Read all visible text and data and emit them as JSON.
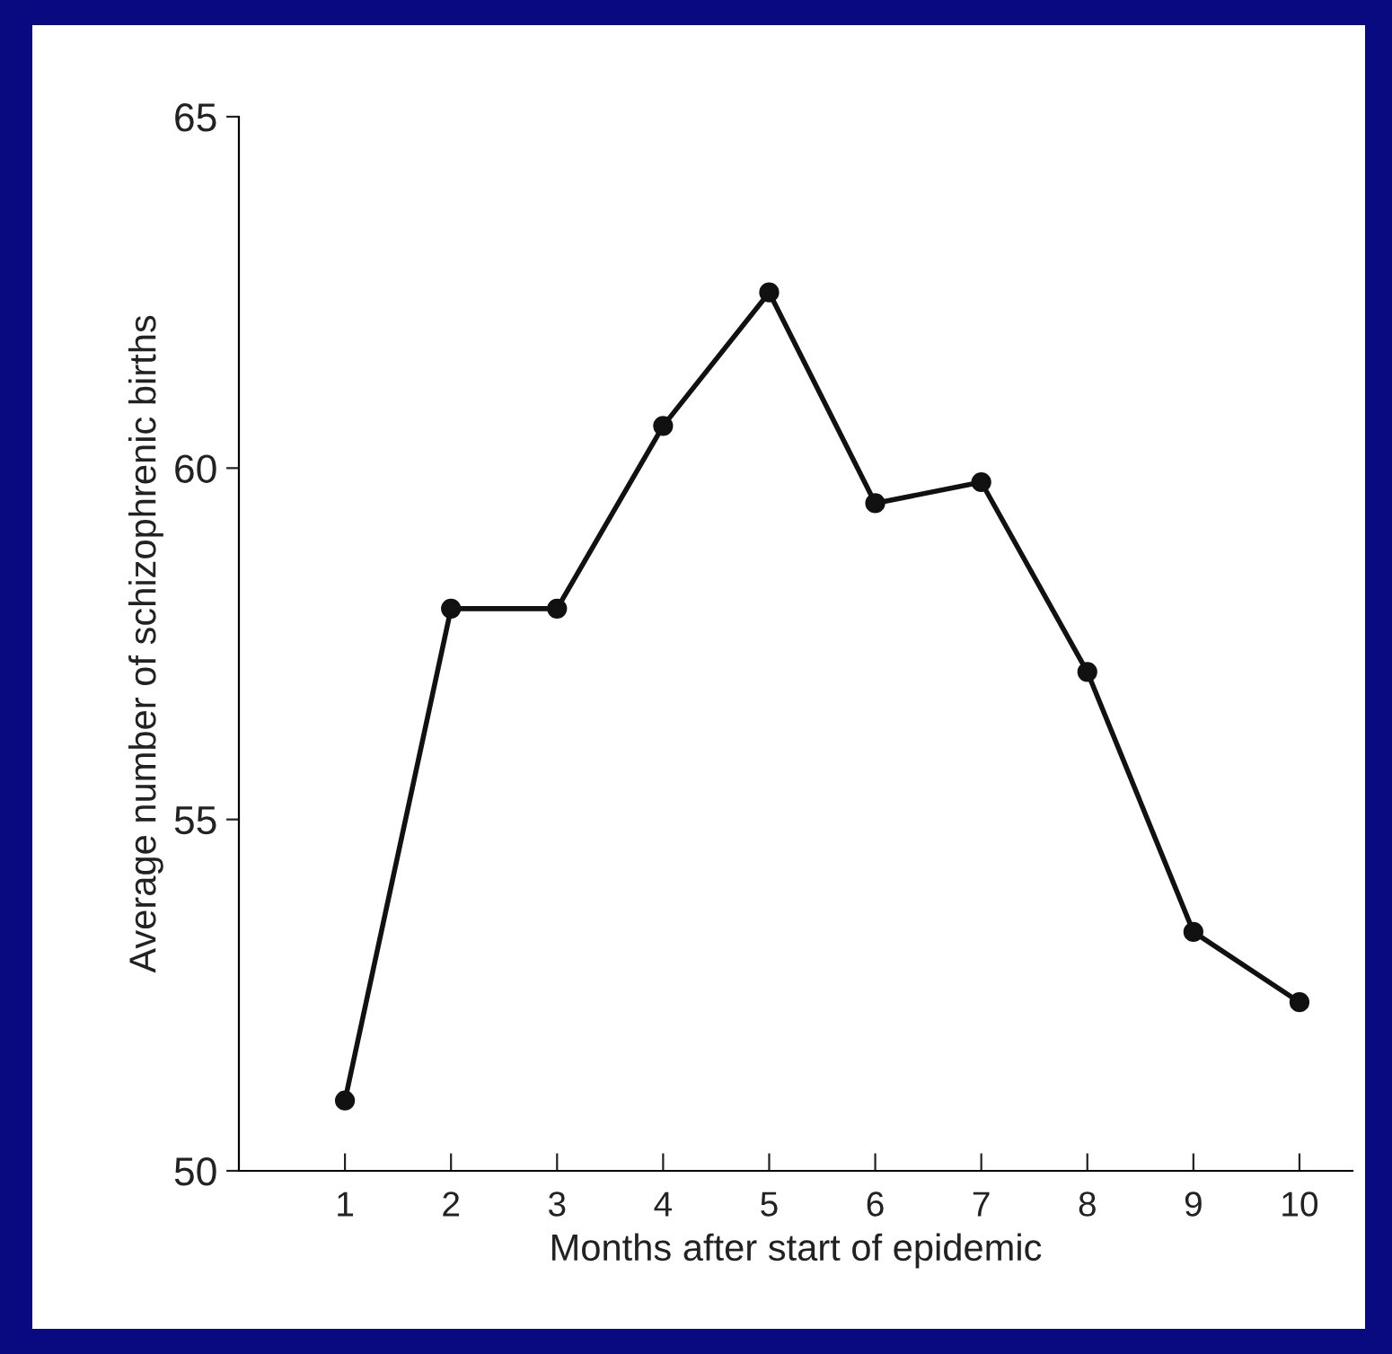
{
  "chart_data": {
    "type": "line",
    "xlabel": "Months after start of epidemic",
    "ylabel": "Average number of schizophrenic births",
    "x": [
      1,
      2,
      3,
      4,
      5,
      6,
      7,
      8,
      9,
      10
    ],
    "series": [
      {
        "color": "#111111",
        "values": [
          51.0,
          58.0,
          58.0,
          60.6,
          62.5,
          59.5,
          59.8,
          57.1,
          53.4,
          52.4
        ]
      }
    ],
    "xlim": [
      0,
      10.5
    ],
    "xticks": [
      1,
      2,
      3,
      4,
      5,
      6,
      7,
      8,
      9,
      10
    ],
    "ylim": [
      50,
      65
    ],
    "yticks": [
      50,
      55,
      60,
      65
    ],
    "grid": false,
    "legend": false,
    "marker": "circle",
    "line_style": "solid"
  }
}
